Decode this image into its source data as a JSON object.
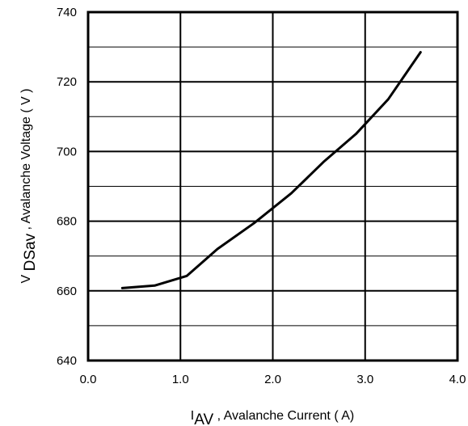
{
  "chart_data": {
    "type": "line",
    "xlabel": {
      "prefix": "I",
      "subscript": "AV",
      "text": " , Avalanche Current ( A)"
    },
    "ylabel": {
      "prefix": "V ",
      "subscript": "DSav",
      "text": " , Avalanche Voltage ( V )"
    },
    "xlim": [
      0.0,
      4.0
    ],
    "ylim": [
      640,
      740
    ],
    "x_ticks": [
      "0.0",
      "1.0",
      "2.0",
      "3.0",
      "4.0"
    ],
    "y_ticks": [
      "640",
      "660",
      "680",
      "700",
      "720",
      "740"
    ],
    "grid": true,
    "series": [
      {
        "x": [
          0.37,
          0.72,
          1.07,
          1.4,
          1.8,
          2.2,
          2.55,
          2.9,
          3.25,
          3.6
        ],
        "y": [
          660.8,
          661.5,
          664.3,
          672.0,
          679.5,
          688.0,
          697.0,
          705.0,
          715.0,
          728.5
        ]
      }
    ],
    "colors": {
      "line": "#000000",
      "grid": "#000000",
      "frame": "#000000"
    }
  }
}
